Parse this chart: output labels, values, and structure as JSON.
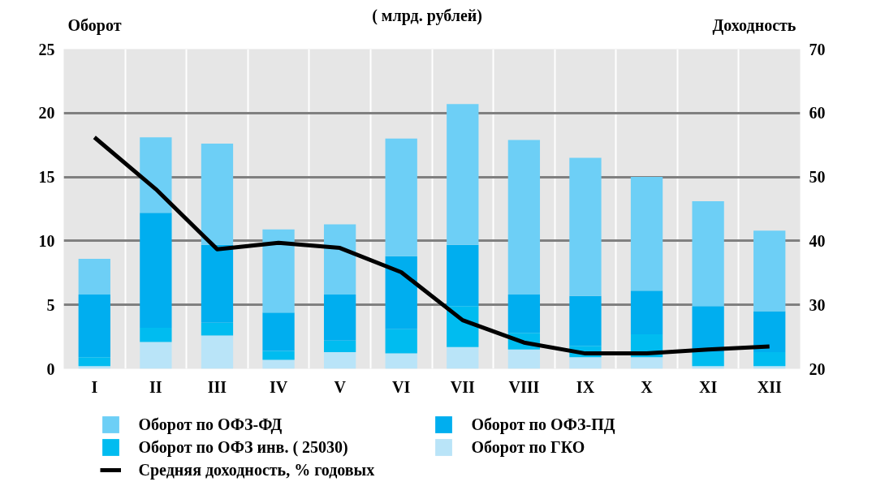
{
  "chart_data": {
    "type": "bar",
    "stacked": true,
    "title": "( млрд. рублей)",
    "ylabel": "Оборот",
    "y2label": "Доходность",
    "categories": [
      "I",
      "II",
      "III",
      "IV",
      "V",
      "VI",
      "VII",
      "VIII",
      "IX",
      "X",
      "XI",
      "XII"
    ],
    "series": [
      {
        "name": "Оборот по ГКО",
        "color": "#b9e4f8",
        "values": [
          0.2,
          2.1,
          2.6,
          0.7,
          1.3,
          1.2,
          1.7,
          1.5,
          0.9,
          0.9,
          0.2,
          0.2
        ]
      },
      {
        "name": "Оборот по ОФЗ инв. ( 25030)",
        "color": "#00bcf0",
        "values": [
          0.7,
          1.1,
          1.0,
          0.7,
          0.9,
          1.9,
          3.2,
          1.3,
          0.9,
          1.8,
          1.1,
          1.1
        ]
      },
      {
        "name": "Оборот по ОФЗ-ПД",
        "color": "#00aeef",
        "values": [
          4.9,
          9.0,
          6.1,
          3.0,
          3.6,
          5.7,
          4.8,
          3.0,
          3.9,
          3.4,
          3.6,
          3.2
        ]
      },
      {
        "name": "Оборот по ОФЗ-ФД",
        "color": "#6dcff6",
        "values": [
          2.8,
          5.9,
          7.9,
          6.5,
          5.5,
          9.2,
          11.0,
          12.1,
          10.8,
          8.9,
          8.2,
          6.3
        ]
      },
      {
        "name": "Средняя доходность, % годовых",
        "type": "line",
        "axis": "y2",
        "color": "#000000",
        "values": [
          56.2,
          48.1,
          38.7,
          39.7,
          38.9,
          35.1,
          27.6,
          24.1,
          22.4,
          22.4,
          23.0,
          23.5
        ]
      }
    ],
    "ylim": [
      0,
      25
    ],
    "yticks": [
      0,
      5,
      10,
      15,
      20,
      25
    ],
    "y2lim": [
      20,
      70
    ],
    "y2ticks": [
      20,
      30,
      40,
      50,
      60,
      70
    ],
    "grid": true,
    "legend": "bottom",
    "line_style": "solid",
    "marker": "none"
  }
}
